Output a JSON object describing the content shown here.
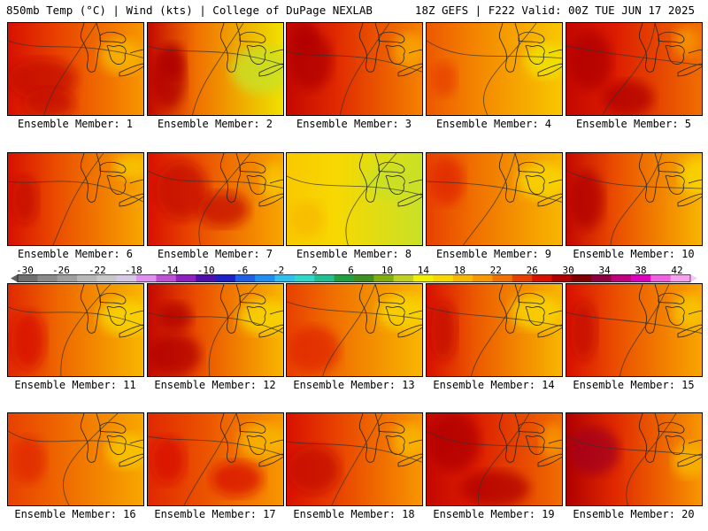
{
  "header": {
    "left": "850mb Temp (°C) | Wind (kts) | College of DuPage NEXLAB",
    "right": "18Z GEFS | F222 Valid: 00Z TUE JUN 17 2025"
  },
  "members": [
    {
      "label": "Ensemble Member: 1",
      "mean": 20,
      "wst": 24,
      "warm": [
        [
          0.05,
          0.6,
          0.4,
          0.35
        ],
        [
          0.15,
          0.85,
          0.3,
          0.25
        ]
      ],
      "cool": [
        [
          0.7,
          0.35,
          0.25,
          0.3
        ]
      ]
    },
    {
      "label": "Ensemble Member: 2",
      "mean": 15,
      "wst": 25,
      "warm": [
        [
          0.05,
          0.6,
          0.2,
          0.5
        ],
        [
          0.1,
          0.4,
          0.15,
          0.3
        ]
      ],
      "cool": [
        [
          0.65,
          0.5,
          0.35,
          0.4
        ]
      ]
    },
    {
      "label": "Ensemble Member: 3",
      "mean": 21,
      "wst": 25,
      "warm": [
        [
          0.05,
          0.4,
          0.25,
          0.5
        ],
        [
          0.05,
          0.15,
          0.15,
          0.3
        ]
      ],
      "cool": [
        [
          0.8,
          0.3,
          0.2,
          0.3
        ]
      ]
    },
    {
      "label": "Ensemble Member: 4",
      "mean": 17,
      "wst": 21,
      "warm": [
        [
          0.05,
          0.6,
          0.15,
          0.3
        ]
      ],
      "cool": [
        [
          0.75,
          0.4,
          0.25,
          0.3
        ]
      ]
    },
    {
      "label": "Ensemble Member: 5",
      "mean": 22,
      "wst": 25,
      "warm": [
        [
          0.05,
          0.4,
          0.25,
          0.5
        ],
        [
          0.3,
          0.8,
          0.3,
          0.3
        ]
      ],
      "cool": [
        [
          0.8,
          0.2,
          0.15,
          0.25
        ]
      ]
    },
    {
      "label": "Ensemble Member: 6",
      "mean": 19,
      "wst": 24,
      "warm": [
        [
          0.05,
          0.5,
          0.15,
          0.4
        ]
      ],
      "cool": [
        [
          0.8,
          0.15,
          0.2,
          0.2
        ]
      ]
    },
    {
      "label": "Ensemble Member: 7",
      "mean": 19,
      "wst": 24,
      "warm": [
        [
          0.1,
          0.4,
          0.3,
          0.5
        ],
        [
          0.4,
          0.6,
          0.3,
          0.3
        ]
      ],
      "cool": [
        [
          0.85,
          0.3,
          0.15,
          0.3
        ]
      ]
    },
    {
      "label": "Ensemble Member: 8",
      "mean": 13,
      "wst": 15,
      "warm": [
        [
          0.05,
          0.7,
          0.2,
          0.3
        ]
      ],
      "cool": [
        [
          0.6,
          0.3,
          0.3,
          0.3
        ]
      ]
    },
    {
      "label": "Ensemble Member: 9",
      "mean": 18,
      "wst": 22,
      "warm": [
        [
          0.05,
          0.3,
          0.2,
          0.4
        ]
      ],
      "cool": [
        [
          0.7,
          0.3,
          0.3,
          0.3
        ]
      ]
    },
    {
      "label": "Ensemble Member: 10",
      "mean": 18,
      "wst": 25,
      "warm": [
        [
          0.05,
          0.5,
          0.2,
          0.5
        ]
      ],
      "cool": [
        [
          0.85,
          0.25,
          0.2,
          0.3
        ]
      ]
    },
    {
      "label": "Ensemble Member: 11",
      "mean": 18,
      "wst": 23,
      "warm": [
        [
          0.05,
          0.6,
          0.2,
          0.5
        ]
      ],
      "cool": [
        [
          0.7,
          0.35,
          0.3,
          0.3
        ]
      ]
    },
    {
      "label": "Ensemble Member: 12",
      "mean": 18,
      "wst": 25,
      "warm": [
        [
          0.05,
          0.75,
          0.3,
          0.35
        ],
        [
          0.1,
          0.35,
          0.2,
          0.25
        ]
      ],
      "cool": [
        [
          0.7,
          0.35,
          0.3,
          0.3
        ]
      ]
    },
    {
      "label": "Ensemble Member: 13",
      "mean": 18,
      "wst": 22,
      "warm": [
        [
          0.05,
          0.7,
          0.3,
          0.4
        ]
      ],
      "cool": [
        [
          0.7,
          0.3,
          0.3,
          0.3
        ]
      ]
    },
    {
      "label": "Ensemble Member: 14",
      "mean": 18,
      "wst": 24,
      "warm": [
        [
          0.05,
          0.5,
          0.15,
          0.5
        ]
      ],
      "cool": [
        [
          0.65,
          0.3,
          0.3,
          0.3
        ]
      ]
    },
    {
      "label": "Ensemble Member: 15",
      "mean": 19,
      "wst": 24,
      "warm": [
        [
          0.05,
          0.5,
          0.15,
          0.5
        ]
      ],
      "cool": [
        [
          0.8,
          0.3,
          0.2,
          0.3
        ]
      ]
    },
    {
      "label": "Ensemble Member: 16",
      "mean": 19,
      "wst": 22,
      "warm": [
        [
          0.05,
          0.5,
          0.2,
          0.4
        ]
      ],
      "cool": [
        [
          0.75,
          0.4,
          0.25,
          0.3
        ]
      ]
    },
    {
      "label": "Ensemble Member: 17",
      "mean": 20,
      "wst": 23,
      "warm": [
        [
          0.05,
          0.5,
          0.2,
          0.4
        ],
        [
          0.5,
          0.7,
          0.3,
          0.3
        ]
      ],
      "cool": [
        [
          0.7,
          0.3,
          0.3,
          0.3
        ]
      ]
    },
    {
      "label": "Ensemble Member: 18",
      "mean": 20,
      "wst": 24,
      "warm": [
        [
          0.05,
          0.6,
          0.3,
          0.4
        ]
      ],
      "cool": [
        [
          0.8,
          0.3,
          0.2,
          0.3
        ]
      ]
    },
    {
      "label": "Ensemble Member: 19",
      "mean": 22,
      "wst": 25,
      "warm": [
        [
          0.05,
          0.3,
          0.3,
          0.5
        ],
        [
          0.3,
          0.8,
          0.4,
          0.3
        ]
      ],
      "cool": [
        [
          0.85,
          0.3,
          0.15,
          0.3
        ]
      ]
    },
    {
      "label": "Ensemble Member: 20",
      "mean": 20,
      "wst": 26,
      "warm": [
        [
          0.05,
          0.4,
          0.3,
          0.4
        ]
      ],
      "cool": [
        [
          0.8,
          0.5,
          0.2,
          0.3
        ]
      ]
    }
  ],
  "colorbar": {
    "labels": [
      "-30",
      "-26",
      "-22",
      "-18",
      "-14",
      "-10",
      "-6",
      "-2",
      "2",
      "6",
      "10",
      "14",
      "18",
      "22",
      "26",
      "30",
      "34",
      "38",
      "42"
    ],
    "colors": [
      "#707070",
      "#8a8a8a",
      "#a0a0a0",
      "#b8b8b8",
      "#c8c8c8",
      "#d8c8e8",
      "#e090f0",
      "#c050d8",
      "#9020c0",
      "#5010b0",
      "#2020c8",
      "#2060e8",
      "#2090f0",
      "#30c0f0",
      "#30d8c8",
      "#20c090",
      "#20a040",
      "#409020",
      "#80b010",
      "#c0d020",
      "#f0f000",
      "#f8d800",
      "#f8b800",
      "#f89800",
      "#f07000",
      "#e84000",
      "#d81000",
      "#b00000",
      "#800000",
      "#900040",
      "#c00080",
      "#e000c0",
      "#f060e0",
      "#f8a0f0"
    ]
  }
}
